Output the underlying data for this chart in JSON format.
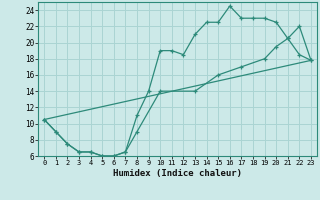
{
  "xlabel": "Humidex (Indice chaleur)",
  "background_color": "#cce9e8",
  "grid_color": "#aad4d3",
  "line_color": "#2d8a7a",
  "xlim": [
    -0.5,
    23.5
  ],
  "ylim": [
    6,
    25
  ],
  "yticks": [
    6,
    8,
    10,
    12,
    14,
    16,
    18,
    20,
    22,
    24
  ],
  "xticks": [
    0,
    1,
    2,
    3,
    4,
    5,
    6,
    7,
    8,
    9,
    10,
    11,
    12,
    13,
    14,
    15,
    16,
    17,
    18,
    19,
    20,
    21,
    22,
    23
  ],
  "series1_x": [
    0,
    1,
    2,
    3,
    4,
    5,
    6,
    7,
    8,
    9,
    10,
    11,
    12,
    13,
    14,
    15,
    16,
    17,
    18,
    19,
    20,
    21,
    22,
    23
  ],
  "series1_y": [
    10.5,
    9.0,
    7.5,
    6.5,
    6.5,
    6.0,
    6.0,
    6.5,
    11.0,
    14.0,
    19.0,
    19.0,
    18.5,
    21.0,
    22.5,
    22.5,
    24.5,
    23.0,
    23.0,
    23.0,
    22.5,
    20.5,
    18.5,
    17.8
  ],
  "series2_x": [
    0,
    1,
    2,
    3,
    4,
    5,
    6,
    7,
    8,
    10,
    13,
    15,
    17,
    19,
    20,
    21,
    22,
    23
  ],
  "series2_y": [
    10.5,
    9.0,
    7.5,
    6.5,
    6.5,
    6.0,
    6.0,
    6.5,
    9.0,
    14.0,
    14.0,
    16.0,
    17.0,
    18.0,
    19.5,
    20.5,
    22.0,
    17.8
  ],
  "series3_x": [
    0,
    23
  ],
  "series3_y": [
    10.5,
    17.8
  ]
}
